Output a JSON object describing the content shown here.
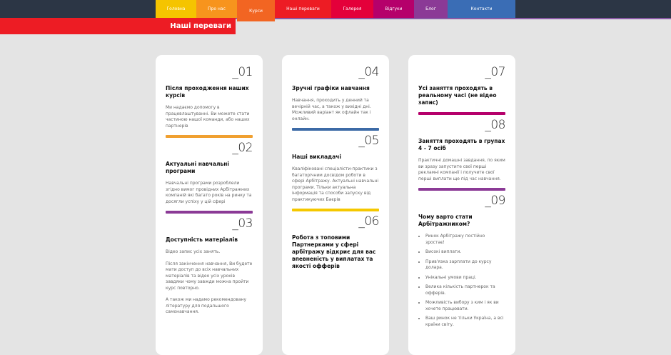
{
  "nav": [
    {
      "label": "Головна",
      "color": "#f5c400",
      "w": 57
    },
    {
      "label": "Про нас",
      "color": "#f7941d",
      "w": 57
    },
    {
      "label": "Курси",
      "color": "#f26522",
      "w": 53
    },
    {
      "label": "Наші переваги",
      "color": "#ed1c24",
      "w": 79
    },
    {
      "label": "Галерея",
      "color": "#e4003a",
      "w": 59
    },
    {
      "label": "Відгуки",
      "color": "#b5006b",
      "w": 57
    },
    {
      "label": "Блог",
      "color": "#8b3a96",
      "w": 47
    },
    {
      "label": "Контакти",
      "color": "#3a6db5",
      "w": 95
    }
  ],
  "section_title": "Наші переваги",
  "cards": [
    [
      {
        "num": "_01",
        "title": "Після проходження наших курсів",
        "text": [
          "Ми надаємо допомогу в працевлаштуванні. Ви можете стати частиною нашої команди, або наших партнерів"
        ],
        "bar": "#f0a030"
      },
      {
        "num": "_02",
        "title": "Актуальні навчальні програми",
        "text": [
          "Навчальні програми розроблели згідно вимог провідних Арбітражних компаній які багато років на ринку та досягли успіху у цій сфері"
        ],
        "bar": "#8b3a96"
      },
      {
        "num": "_03",
        "title": "Доступність матеріалів",
        "text": [
          "Відео запис усіх занять.",
          "Після закінчення навчання, Ви будете мати доступ до всіх навчальних матеріалів та відео усіх уроків завдяки чому завжди можна пройти курс повторно.",
          "А також ми надамо рекомендовану літературу для подальшого самонавчання."
        ]
      }
    ],
    [
      {
        "num": "_04",
        "title": "Зручні графіки навчання",
        "text": [
          "Навчання, проходить у денний та вечірній час, а також у вихідні дні. Можливий варіант як офлайн так і онлайн."
        ],
        "bar": "#3c6aa6"
      },
      {
        "num": "_05",
        "title": "Наші викладачі",
        "text": [
          "Кваліфіковані спеціалісти-практики з багаторічним досвідом роботи в сфері Арбітражу. Актуальні навчальні програми. Тільки актуальна інформація та способи запуску від практикуючих Баєрів"
        ],
        "bar": "#f5c800"
      },
      {
        "num": "_06",
        "title": "Робота з топовими Партнерками у сфері арбітражу відкриє для вас впевненість у виплатах та якості офферів",
        "text": []
      }
    ],
    [
      {
        "num": "_07",
        "title": "Усі заняття проходять в реальному часі (не відео запис)",
        "text": [],
        "bar": "#b5006b"
      },
      {
        "num": "_08",
        "title": "Заняття проходять в групах 4 - 7 осіб",
        "text": [
          "Практичні домашні завдання, по яким ви зразу запустите свої перші рекламні компанії і получите свої перші виплати ще під час навчання."
        ],
        "bar": "#8b3a96"
      },
      {
        "num": "_09",
        "title": "Чому варто стати Арбітражником?",
        "text": [],
        "list": [
          "Ринок Арбітражу постійно зростає!",
          "Високі виплати.",
          "Прив'язка зарплати до курсу долара.",
          "Унікальні умови праці.",
          "Велика кількість партнерок та офферів.",
          "Можливість вибору з ким і як ви хочете працювати.",
          "Ваш ринок не тільки Україна, а всі країни світу."
        ]
      }
    ]
  ]
}
